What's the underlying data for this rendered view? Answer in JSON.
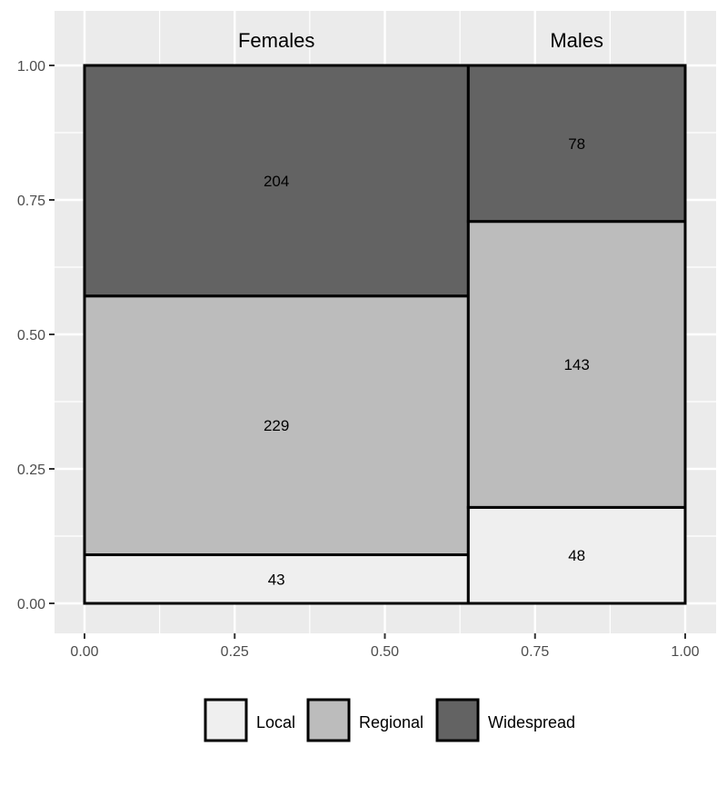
{
  "chart_data": {
    "type": "mosaic",
    "x_axis": {
      "range": [
        0,
        1
      ],
      "ticks": [
        "0.00",
        "0.25",
        "0.50",
        "0.75",
        "1.00"
      ]
    },
    "y_axis": {
      "range": [
        0,
        1
      ],
      "ticks": [
        "0.00",
        "0.25",
        "0.50",
        "0.75",
        "1.00"
      ]
    },
    "grid": true,
    "legend_position": "bottom",
    "series": [
      {
        "name": "Local",
        "color": "#efefef"
      },
      {
        "name": "Regional",
        "color": "#bcbcbc"
      },
      {
        "name": "Widespread",
        "color": "#636363"
      }
    ],
    "columns": [
      {
        "name": "Females",
        "counts": {
          "Local": 43,
          "Regional": 229,
          "Widespread": 204
        }
      },
      {
        "name": "Males",
        "counts": {
          "Local": 48,
          "Regional": 143,
          "Widespread": 78
        }
      }
    ]
  },
  "colors": {
    "panel_background": "#ebebeb",
    "grid_line": "#ffffff",
    "cell_border": "#000000"
  }
}
